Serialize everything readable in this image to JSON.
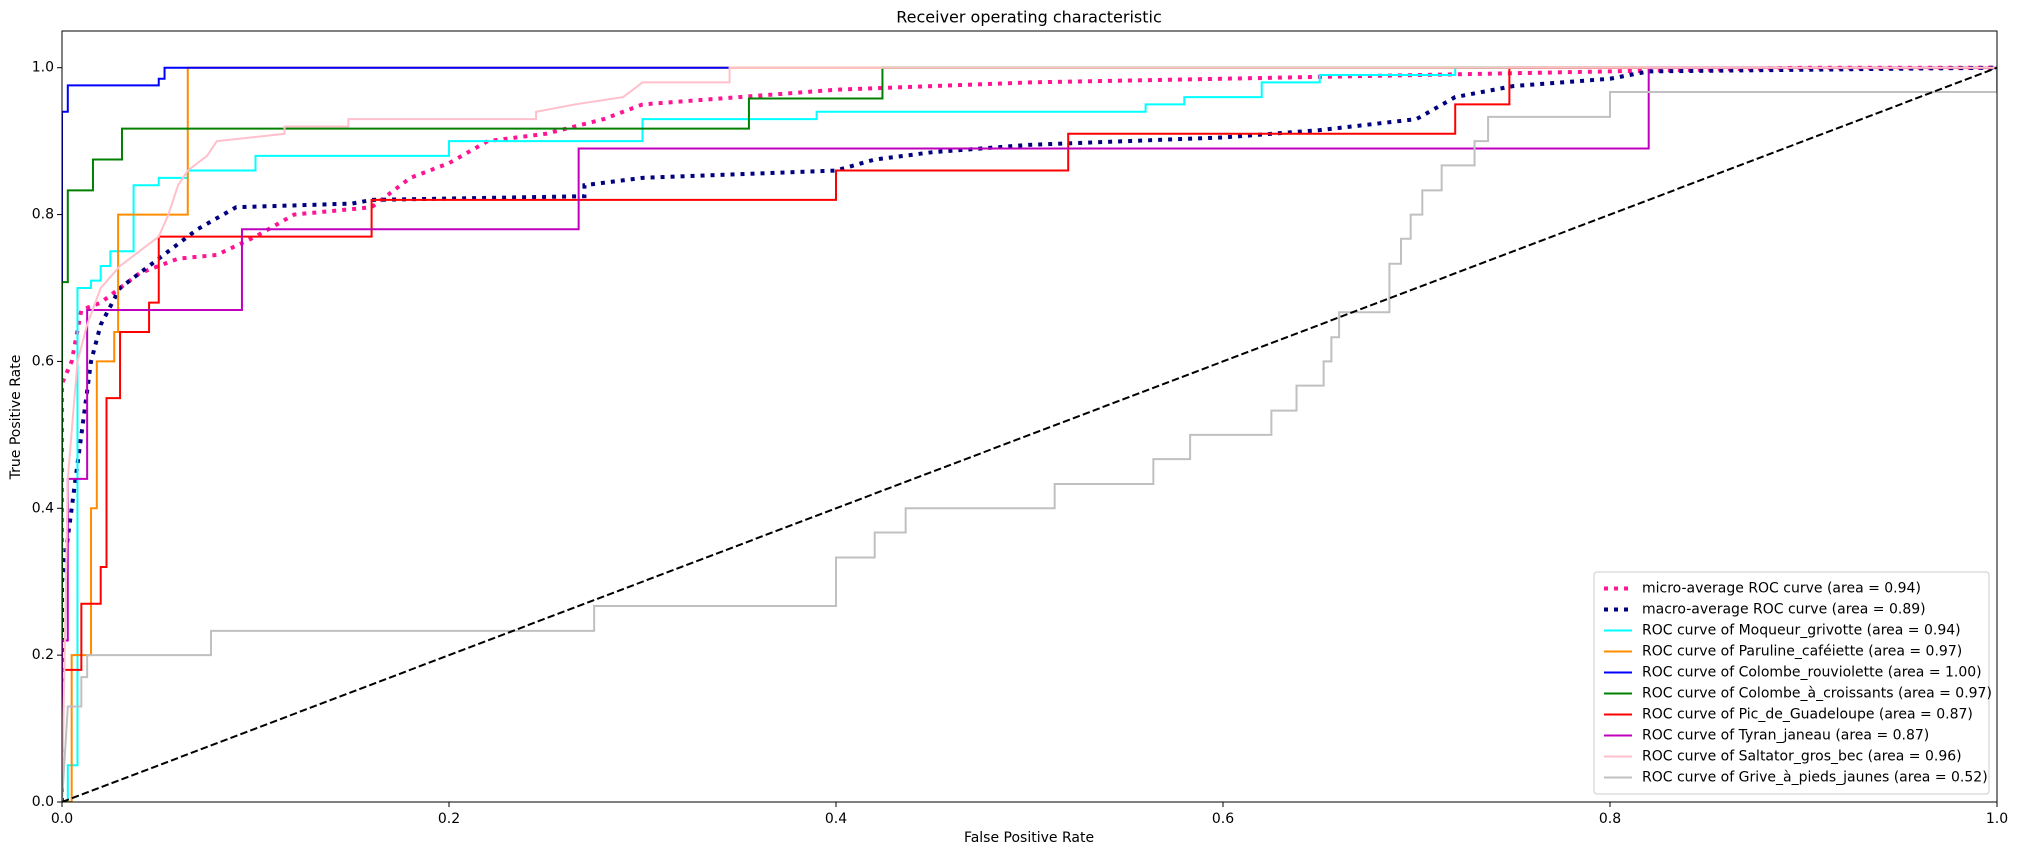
{
  "chart_data": {
    "type": "line",
    "title": "Receiver operating characteristic",
    "xlabel": "False Positive Rate",
    "ylabel": "True Positive Rate",
    "xlim": [
      0,
      1
    ],
    "ylim": [
      0,
      1.05
    ],
    "xticks": [
      {
        "value": 0,
        "label": "0.0"
      },
      0.2,
      0.4,
      0.6,
      0.8,
      {
        "value": 1,
        "label": "1.0"
      }
    ],
    "yticks": [
      {
        "value": 0,
        "label": "0.0"
      },
      0.2,
      0.4,
      0.6,
      0.8,
      {
        "value": 1,
        "label": "1.0"
      }
    ],
    "grid": false,
    "legend": "lower right",
    "series": [
      {
        "name": "micro-average ROC curve (area = 0.94)",
        "color": "deeppink",
        "width": 4,
        "dash": "dotted",
        "x": [
          0,
          0,
          0.005,
          0.01,
          0.02,
          0.03,
          0.04,
          0.05,
          0.06,
          0.08,
          0.1,
          0.12,
          0.16,
          0.18,
          0.2,
          0.22,
          0.25,
          0.28,
          0.3,
          0.35,
          0.4,
          0.45,
          0.5,
          0.6,
          0.7,
          0.8,
          0.9,
          1
        ],
        "values": [
          0,
          0.57,
          0.6,
          0.67,
          0.68,
          0.7,
          0.72,
          0.73,
          0.74,
          0.745,
          0.77,
          0.8,
          0.81,
          0.85,
          0.87,
          0.9,
          0.91,
          0.93,
          0.95,
          0.96,
          0.97,
          0.975,
          0.98,
          0.985,
          0.99,
          0.995,
          1,
          1
        ]
      },
      {
        "name": "macro-average ROC curve (area = 0.89)",
        "color": "navy",
        "width": 4,
        "dash": "dotted",
        "x": [
          0,
          0,
          0.005,
          0.01,
          0.015,
          0.02,
          0.03,
          0.045,
          0.06,
          0.07,
          0.09,
          0.15,
          0.16,
          0.27,
          0.27,
          0.3,
          0.4,
          0.42,
          0.45,
          0.5,
          0.55,
          0.6,
          0.65,
          0.7,
          0.72,
          0.75,
          0.8,
          0.82,
          1
        ],
        "values": [
          0,
          0.3,
          0.4,
          0.5,
          0.6,
          0.65,
          0.7,
          0.73,
          0.76,
          0.78,
          0.81,
          0.815,
          0.82,
          0.825,
          0.84,
          0.85,
          0.86,
          0.875,
          0.885,
          0.895,
          0.9,
          0.905,
          0.915,
          0.93,
          0.96,
          0.975,
          0.985,
          0.995,
          1
        ]
      },
      {
        "name": "ROC curve of Moqueur_grivotte (area = 0.94)",
        "color": "aqua",
        "width": 2,
        "dash": "solid",
        "x": [
          0,
          0.003,
          0.003,
          0.008,
          0.008,
          0.015,
          0.015,
          0.02,
          0.02,
          0.025,
          0.025,
          0.037,
          0.037,
          0.05,
          0.05,
          0.065,
          0.065,
          0.1,
          0.1,
          0.2,
          0.2,
          0.3,
          0.3,
          0.39,
          0.39,
          0.56,
          0.56,
          0.58,
          0.58,
          0.62,
          0.62,
          0.65,
          0.65,
          0.72,
          0.72,
          1
        ],
        "values": [
          0,
          0,
          0.05,
          0.05,
          0.7,
          0.7,
          0.71,
          0.71,
          0.73,
          0.73,
          0.75,
          0.75,
          0.84,
          0.84,
          0.85,
          0.85,
          0.86,
          0.86,
          0.88,
          0.88,
          0.9,
          0.9,
          0.93,
          0.93,
          0.94,
          0.94,
          0.95,
          0.95,
          0.96,
          0.96,
          0.98,
          0.98,
          0.99,
          0.99,
          1,
          1
        ]
      },
      {
        "name": "ROC curve of Paruline_caféiette (area = 0.97)",
        "color": "darkorange",
        "width": 2,
        "dash": "solid",
        "x": [
          0,
          0.005,
          0.005,
          0.015,
          0.015,
          0.018,
          0.018,
          0.027,
          0.027,
          0.029,
          0.029,
          0.065,
          0.065,
          1
        ],
        "values": [
          0,
          0,
          0.2,
          0.2,
          0.4,
          0.4,
          0.6,
          0.6,
          0.64,
          0.64,
          0.8,
          0.8,
          1,
          1
        ]
      },
      {
        "name": "ROC curve of Colombe_rouviolette (area = 1.00)",
        "color": "blue",
        "width": 2,
        "dash": "solid",
        "x": [
          0,
          0,
          0.003,
          0.003,
          0.05,
          0.05,
          0.053,
          0.053,
          0.345
        ],
        "values": [
          0,
          0.94,
          0.94,
          0.976,
          0.976,
          0.985,
          0.985,
          1,
          1
        ]
      },
      {
        "name": "ROC curve of Colombe_à_croissants (area = 0.97)",
        "color": "green",
        "width": 2,
        "dash": "solid",
        "x": [
          0,
          0,
          0.003,
          0.003,
          0.016,
          0.016,
          0.031,
          0.031,
          0.355,
          0.355,
          0.424,
          0.424,
          1
        ],
        "values": [
          0,
          0.708,
          0.708,
          0.833,
          0.833,
          0.875,
          0.875,
          0.917,
          0.917,
          0.958,
          0.958,
          1,
          1
        ]
      },
      {
        "name": "ROC curve of Pic_de_Guadeloupe (area = 0.87)",
        "color": "red",
        "width": 2,
        "dash": "solid",
        "x": [
          0,
          0,
          0.01,
          0.01,
          0.02,
          0.02,
          0.023,
          0.023,
          0.03,
          0.03,
          0.045,
          0.045,
          0.05,
          0.05,
          0.16,
          0.16,
          0.4,
          0.4,
          0.52,
          0.52,
          0.72,
          0.72,
          0.748,
          0.748,
          1
        ],
        "values": [
          0,
          0.18,
          0.18,
          0.27,
          0.27,
          0.32,
          0.32,
          0.55,
          0.55,
          0.64,
          0.64,
          0.68,
          0.68,
          0.77,
          0.77,
          0.82,
          0.82,
          0.86,
          0.86,
          0.91,
          0.91,
          0.95,
          0.95,
          1,
          1
        ]
      },
      {
        "name": "ROC curve of Tyran_janeau (area = 0.87)",
        "color": "m",
        "width": 2,
        "dash": "solid",
        "x": [
          0,
          0,
          0.003,
          0.003,
          0.013,
          0.013,
          0.093,
          0.093,
          0.267,
          0.267,
          0.82,
          0.82,
          1
        ],
        "values": [
          0,
          0.22,
          0.22,
          0.44,
          0.44,
          0.67,
          0.67,
          0.78,
          0.78,
          0.89,
          0.89,
          1,
          1
        ]
      },
      {
        "name": "ROC curve of Saltator_gros_bec (area = 0.96)",
        "color": "pink",
        "width": 2,
        "dash": "solid",
        "x": [
          0,
          0.003,
          0.008,
          0.013,
          0.02,
          0.03,
          0.05,
          0.055,
          0.06,
          0.065,
          0.075,
          0.08,
          0.115,
          0.115,
          0.148,
          0.148,
          0.245,
          0.245,
          0.265,
          0.29,
          0.3,
          0.345,
          0.345,
          1
        ],
        "values": [
          0,
          0.44,
          0.6,
          0.65,
          0.7,
          0.73,
          0.77,
          0.8,
          0.84,
          0.86,
          0.88,
          0.9,
          0.91,
          0.92,
          0.92,
          0.93,
          0.93,
          0.94,
          0.95,
          0.96,
          0.98,
          0.98,
          1,
          1
        ]
      },
      {
        "name": "ROC curve of Grive_à_pieds_jaunes (area = 0.52)",
        "color": "silver",
        "width": 2,
        "dash": "solid",
        "x": [
          0,
          0.003,
          0.01,
          0.01,
          0.013,
          0.013,
          0.077,
          0.077,
          0.275,
          0.275,
          0.4,
          0.4,
          0.42,
          0.42,
          0.436,
          0.436,
          0.513,
          0.513,
          0.564,
          0.564,
          0.583,
          0.583,
          0.625,
          0.625,
          0.638,
          0.638,
          0.652,
          0.652,
          0.656,
          0.656,
          0.66,
          0.66,
          0.686,
          0.686,
          0.692,
          0.692,
          0.697,
          0.697,
          0.703,
          0.703,
          0.713,
          0.713,
          0.73,
          0.73,
          0.737,
          0.737,
          0.8,
          0.8,
          1,
          1
        ],
        "values": [
          0,
          0.13,
          0.13,
          0.17,
          0.17,
          0.2,
          0.2,
          0.233,
          0.233,
          0.267,
          0.267,
          0.333,
          0.333,
          0.367,
          0.367,
          0.4,
          0.4,
          0.433,
          0.433,
          0.467,
          0.467,
          0.5,
          0.5,
          0.533,
          0.533,
          0.567,
          0.567,
          0.6,
          0.6,
          0.633,
          0.633,
          0.667,
          0.667,
          0.733,
          0.733,
          0.767,
          0.767,
          0.8,
          0.8,
          0.833,
          0.833,
          0.867,
          0.867,
          0.9,
          0.9,
          0.933,
          0.933,
          0.967,
          0.967,
          1
        ]
      },
      {
        "color": "black",
        "width": 2,
        "dash": "dashed",
        "x": [
          0,
          1
        ],
        "values": [
          0,
          1
        ]
      }
    ]
  }
}
